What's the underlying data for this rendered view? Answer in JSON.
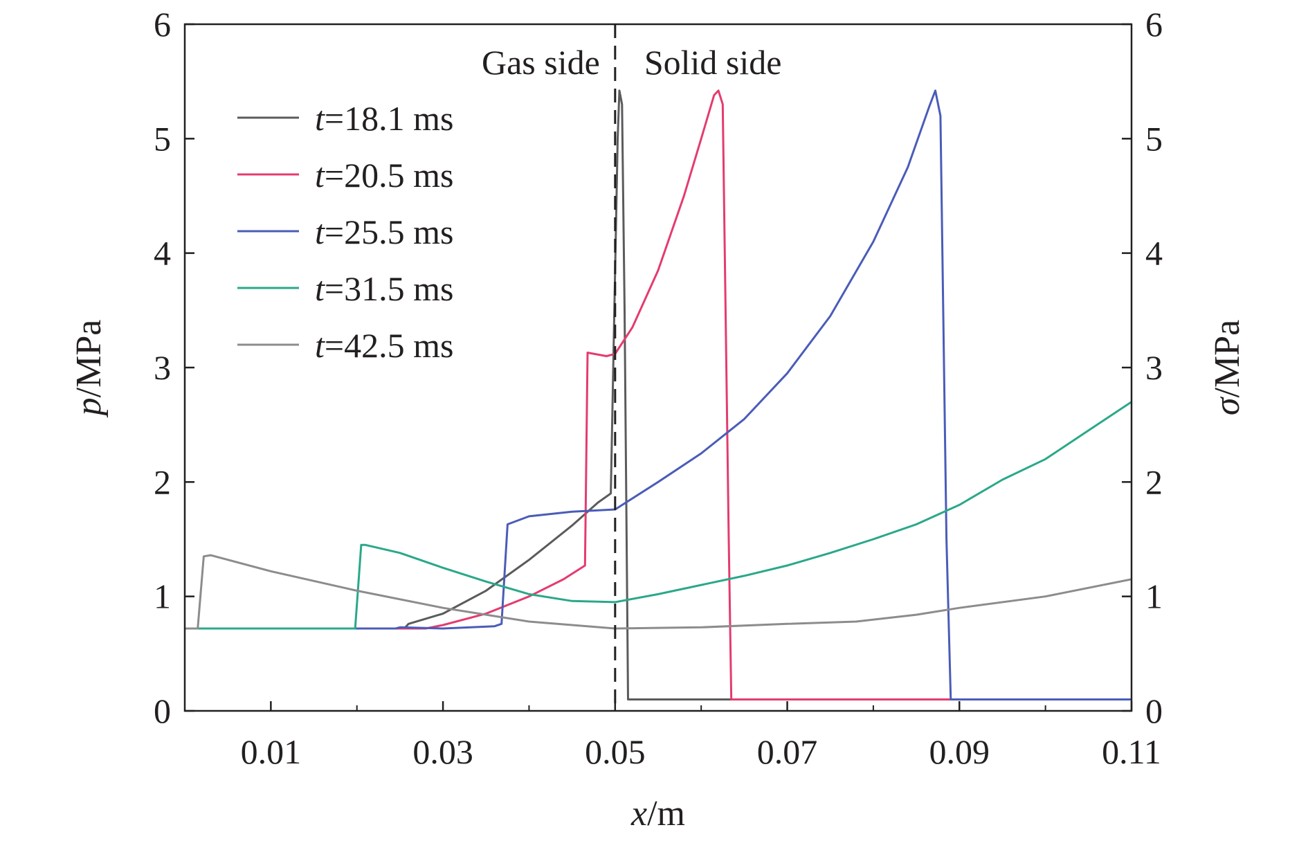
{
  "chart_data": {
    "type": "line",
    "xlabel": {
      "var": "x",
      "unit": "/m"
    },
    "ylabel_left": {
      "var": "p",
      "unit": "/MPa"
    },
    "ylabel_right": {
      "var": "σ",
      "unit": "/MPa"
    },
    "xlim": [
      0.0,
      0.11
    ],
    "ylim": [
      0,
      6
    ],
    "x_ticks": [
      0.01,
      0.03,
      0.05,
      0.07,
      0.09,
      0.11
    ],
    "x_tick_labels": [
      "0.01",
      "0.03",
      "0.05",
      "0.07",
      "0.09",
      "0.11"
    ],
    "y_ticks": [
      0,
      1,
      2,
      3,
      4,
      5,
      6
    ],
    "y_tick_labels": [
      "0",
      "1",
      "2",
      "3",
      "4",
      "5",
      "6"
    ],
    "interface_x": 0.05,
    "region_labels": {
      "left": "Gas side",
      "right": "Solid side"
    },
    "legend_position": "upper-left",
    "series": [
      {
        "name": "t=18.1 ms",
        "var": "t",
        "value_label": "=18.1 ms",
        "color": "#5b5b5d",
        "x": [
          0.0,
          0.0255,
          0.026,
          0.03,
          0.035,
          0.04,
          0.045,
          0.048,
          0.0495,
          0.0503,
          0.0505,
          0.0508,
          0.0511,
          0.0515,
          0.11
        ],
        "y": [
          0.72,
          0.72,
          0.76,
          0.85,
          1.05,
          1.32,
          1.62,
          1.82,
          1.9,
          5.0,
          5.42,
          5.3,
          3.5,
          0.1,
          0.1
        ]
      },
      {
        "name": "t=20.5 ms",
        "var": "t",
        "value_label": "=20.5 ms",
        "color": "#e43b6e",
        "x": [
          0.0,
          0.028,
          0.03,
          0.035,
          0.04,
          0.044,
          0.0465,
          0.0468,
          0.049,
          0.05,
          0.052,
          0.055,
          0.058,
          0.06,
          0.0615,
          0.062,
          0.0625,
          0.0632,
          0.0635,
          0.11
        ],
        "y": [
          0.72,
          0.72,
          0.75,
          0.85,
          1.0,
          1.15,
          1.27,
          3.13,
          3.1,
          3.12,
          3.35,
          3.85,
          4.5,
          5.0,
          5.38,
          5.42,
          5.3,
          1.5,
          0.1,
          0.1
        ]
      },
      {
        "name": "t=25.5 ms",
        "var": "t",
        "value_label": "=25.5 ms",
        "color": "#4a5cb8",
        "x": [
          0.0,
          0.0245,
          0.025,
          0.03,
          0.036,
          0.0368,
          0.0375,
          0.04,
          0.045,
          0.05,
          0.055,
          0.06,
          0.065,
          0.07,
          0.075,
          0.08,
          0.084,
          0.0865,
          0.0872,
          0.0878,
          0.0885,
          0.089,
          0.11
        ],
        "y": [
          0.72,
          0.72,
          0.73,
          0.72,
          0.74,
          0.76,
          1.63,
          1.7,
          1.74,
          1.76,
          2.0,
          2.25,
          2.55,
          2.95,
          3.45,
          4.1,
          4.75,
          5.28,
          5.42,
          5.2,
          1.5,
          0.1,
          0.1
        ]
      },
      {
        "name": "t=31.5 ms",
        "var": "t",
        "value_label": "=31.5 ms",
        "color": "#2aa889",
        "x": [
          0.0,
          0.0198,
          0.0205,
          0.021,
          0.025,
          0.03,
          0.035,
          0.04,
          0.045,
          0.05,
          0.055,
          0.06,
          0.065,
          0.07,
          0.075,
          0.08,
          0.085,
          0.09,
          0.095,
          0.1,
          0.105,
          0.11
        ],
        "y": [
          0.72,
          0.72,
          1.45,
          1.45,
          1.38,
          1.25,
          1.13,
          1.02,
          0.96,
          0.95,
          1.02,
          1.1,
          1.18,
          1.27,
          1.38,
          1.5,
          1.63,
          1.8,
          2.02,
          2.2,
          2.45,
          2.7
        ]
      },
      {
        "name": "t=42.5 ms",
        "var": "t",
        "value_label": "=42.5 ms",
        "color": "#8c8c8e",
        "x": [
          0.0,
          0.0015,
          0.0022,
          0.003,
          0.01,
          0.02,
          0.03,
          0.04,
          0.05,
          0.06,
          0.07,
          0.078,
          0.085,
          0.09,
          0.1,
          0.11
        ],
        "y": [
          0.72,
          0.72,
          1.35,
          1.36,
          1.22,
          1.05,
          0.9,
          0.78,
          0.72,
          0.73,
          0.76,
          0.78,
          0.84,
          0.9,
          1.0,
          1.15
        ]
      }
    ]
  }
}
